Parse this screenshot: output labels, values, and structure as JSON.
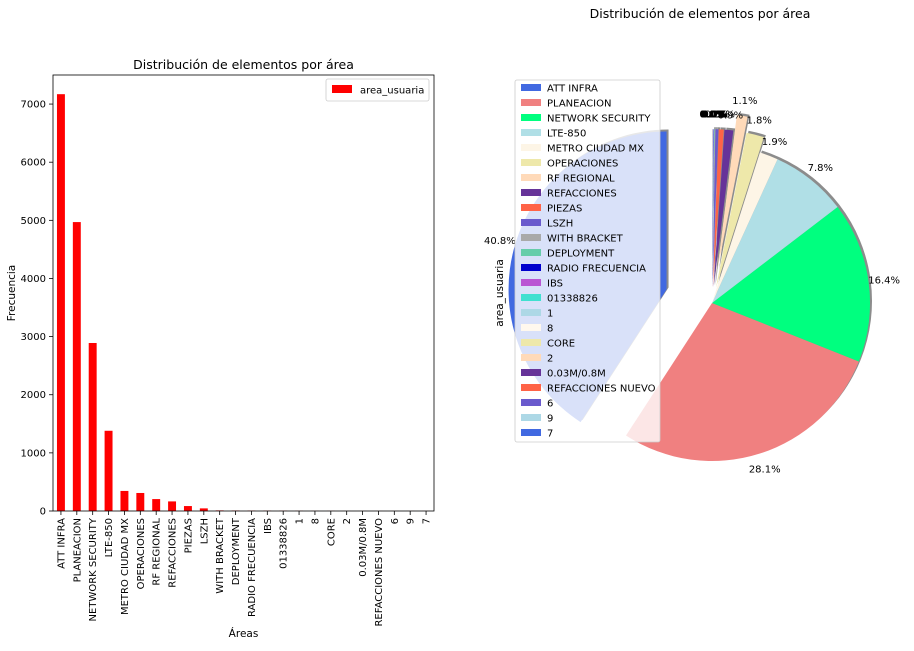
{
  "figure_title": "Distribución de elementos por área",
  "chart_data": [
    {
      "type": "bar",
      "title": "Distribución de elementos por área",
      "xlabel": "Áreas",
      "ylabel": "Frecuencia",
      "ylim": [
        0,
        7500
      ],
      "yticks": [
        0,
        1000,
        2000,
        3000,
        4000,
        5000,
        6000,
        7000
      ],
      "legend": {
        "label": "area_usuaria",
        "placement": "top-right"
      },
      "bar_color": "#ff0000",
      "categories": [
        "ATT INFRA",
        "PLANEACION",
        "NETWORK SECURITY",
        "LTE-850",
        "METRO CIUDAD MX",
        "OPERACIONES",
        "RF REGIONAL",
        "REFACCIONES",
        "PIEZAS",
        "LSZH",
        "WITH BRACKET",
        "DEPLOYMENT",
        "RADIO FRECUENCIA",
        "IBS",
        "01338826",
        "1",
        "8",
        "CORE",
        "2",
        "0.03M/0.8M",
        "REFACCIONES NUEVO",
        "6",
        "9",
        "7"
      ],
      "values": [
        7170,
        4970,
        2890,
        1380,
        345,
        310,
        205,
        165,
        85,
        45,
        10,
        8,
        6,
        5,
        4,
        3,
        2,
        2,
        1,
        1,
        1,
        1,
        1,
        1
      ]
    },
    {
      "type": "pie",
      "ylabel": "area_usuaria",
      "legend": {
        "placement": "upper-left"
      },
      "labels": [
        "ATT INFRA",
        "PLANEACION",
        "NETWORK SECURITY",
        "LTE-850",
        "METRO CIUDAD MX",
        "OPERACIONES",
        "RF REGIONAL",
        "REFACCIONES",
        "PIEZAS",
        "LSZH",
        "WITH BRACKET",
        "DEPLOYMENT",
        "RADIO FRECUENCIA",
        "IBS",
        "01338826",
        "1",
        "8",
        "CORE",
        "2",
        "0.03M/0.8M",
        "REFACCIONES NUEVO",
        "6",
        "9",
        "7"
      ],
      "values": [
        40.8,
        28.1,
        16.4,
        7.8,
        1.9,
        1.8,
        1.1,
        0.9,
        0.5,
        0.3,
        0.06,
        0.05,
        0.04,
        0.03,
        0.02,
        0.02,
        0.01,
        0.01,
        0.01,
        0.01,
        0.01,
        0.01,
        0.01,
        0.01
      ],
      "pct_labels": [
        "40.8%",
        "28.1%",
        "16.4%",
        "7.8%",
        "1.9%",
        "1.8%",
        "1.1%",
        "0.9%",
        "0.5%",
        "0.3%",
        "0.1%",
        "0.0%",
        "0.0%",
        "0.0%",
        "0.0%",
        "0.0%",
        "0.0%",
        "0.0%",
        "0.0%",
        "0.0%",
        "0.0%",
        "0.0%",
        "0.0%",
        "0.0%"
      ],
      "colors": [
        "#4169e1",
        "#f08080",
        "#00ff7f",
        "#b0dfe6",
        "#fdf5e6",
        "#eee8aa",
        "#ffdab9",
        "#663399",
        "#ff6347",
        "#6a5acd",
        "#a9a9a9",
        "#66cdaa",
        "#0000cd",
        "#ba55d3",
        "#40e0d0",
        "#add8e6",
        "#fff8ee",
        "#eee8aa",
        "#ffdab9",
        "#663399",
        "#ff6347",
        "#6a5acd",
        "#add8e6",
        "#4169e1"
      ],
      "explode": [
        0.3,
        0,
        0,
        0,
        0,
        0.1,
        0.2,
        0.1,
        0.1,
        0.1,
        0.1,
        0.1,
        0.1,
        0.1,
        0.1,
        0.1,
        0.1,
        0.1,
        0.1,
        0.1,
        0.1,
        0.1,
        0.1,
        0.1
      ],
      "shadow": true
    }
  ]
}
